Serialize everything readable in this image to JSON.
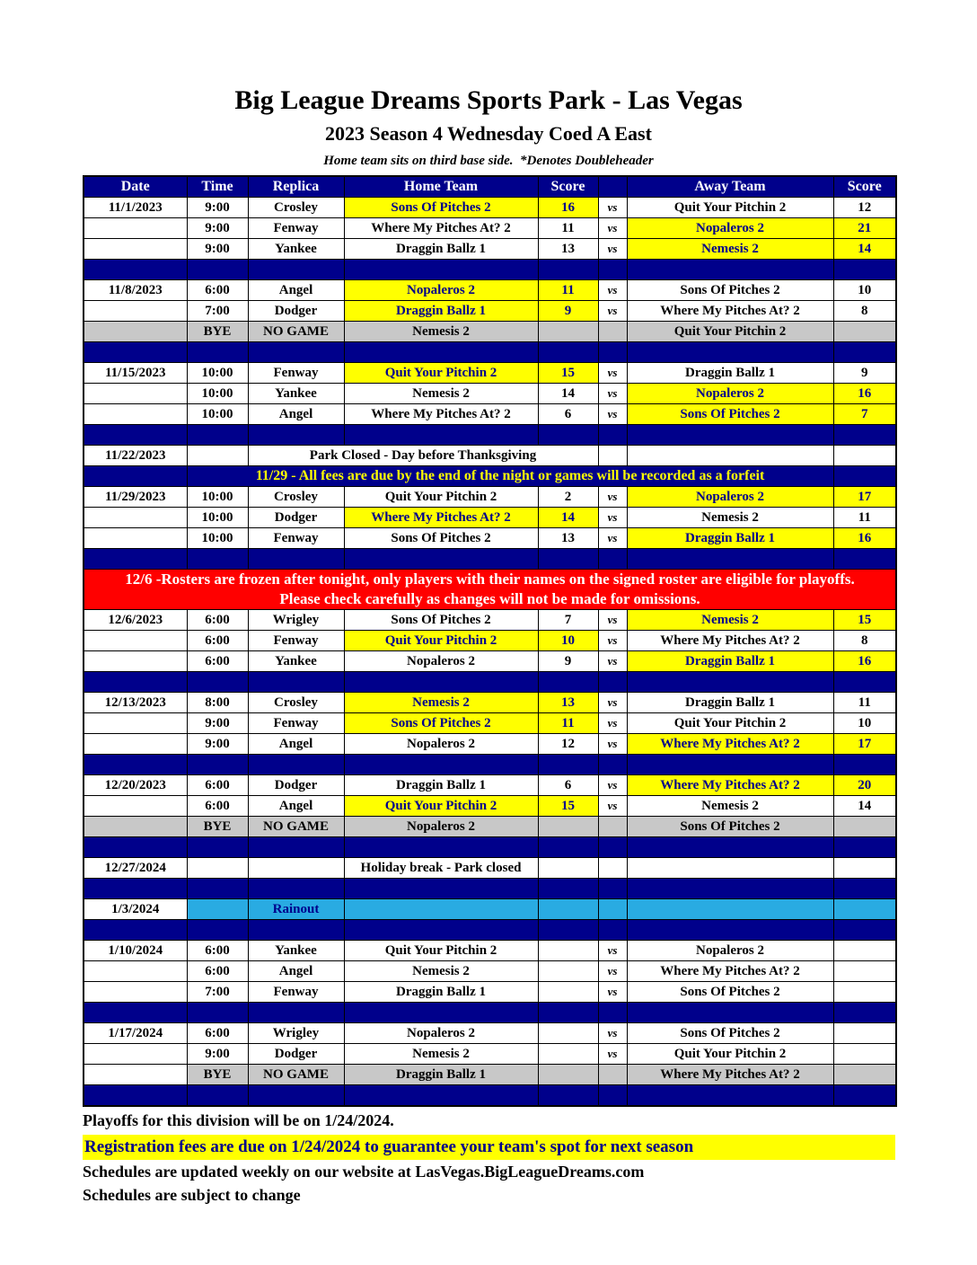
{
  "title": "Big League Dreams Sports Park - Las Vegas",
  "subtitle": "2023 Season 4 Wednesday Coed A East",
  "note": "Home team sits on third base side.  *Denotes Doubleheader",
  "colors": {
    "navy": "#00008B",
    "highlight_yellow": "#FFFF00",
    "alert_red": "#FF0000",
    "rainout_cyan": "#29ABE2",
    "bye_gray": "#C8C8C8",
    "header_text": "#FFFFFF",
    "winner_text": "#00008B"
  },
  "table": {
    "headers": [
      "Date",
      "Time",
      "Replica",
      "Home Team",
      "Score",
      "",
      "Away Team",
      "Score"
    ],
    "vs_label": "vs",
    "rows": [
      {
        "type": "header"
      },
      {
        "type": "game",
        "date": "11/1/2023",
        "time": "9:00",
        "replica": "Crosley",
        "home": "Sons Of Pitches 2",
        "hs": "16",
        "away": "Quit Your Pitchin 2",
        "as": "12",
        "win": "home"
      },
      {
        "type": "game",
        "date": "",
        "time": "9:00",
        "replica": "Fenway",
        "home": "Where My Pitches At? 2",
        "hs": "11",
        "away": "Nopaleros 2",
        "as": "21",
        "win": "away"
      },
      {
        "type": "game",
        "date": "",
        "time": "9:00",
        "replica": "Yankee",
        "home": "Draggin Ballz 1",
        "hs": "13",
        "away": "Nemesis 2",
        "as": "14",
        "win": "away"
      },
      {
        "type": "spacer"
      },
      {
        "type": "game",
        "date": "11/8/2023",
        "time": "6:00",
        "replica": "Angel",
        "home": "Nopaleros 2",
        "hs": "11",
        "away": "Sons Of Pitches 2",
        "as": "10",
        "win": "home"
      },
      {
        "type": "game",
        "date": "",
        "time": "7:00",
        "replica": "Dodger",
        "home": "Draggin Ballz 1",
        "hs": "9",
        "away": "Where My Pitches At? 2",
        "as": "8",
        "win": "home"
      },
      {
        "type": "bye",
        "date": "",
        "date_gray": true,
        "bye": "BYE",
        "nogame": "NO GAME",
        "home": "Nemesis 2",
        "away": "Quit Your Pitchin 2"
      },
      {
        "type": "spacer"
      },
      {
        "type": "game",
        "date": "11/15/2023",
        "time": "10:00",
        "replica": "Fenway",
        "home": "Quit Your Pitchin 2",
        "hs": "15",
        "away": "Draggin Ballz 1",
        "as": "9",
        "win": "home"
      },
      {
        "type": "game",
        "date": "",
        "time": "10:00",
        "replica": "Yankee",
        "home": "Nemesis 2",
        "hs": "14",
        "away": "Nopaleros 2",
        "as": "16",
        "win": "away"
      },
      {
        "type": "game",
        "date": "",
        "time": "10:00",
        "replica": "Angel",
        "home": "Where My Pitches At? 2",
        "hs": "6",
        "away": "Sons Of Pitches 2",
        "as": "7",
        "win": "away"
      },
      {
        "type": "spacer"
      },
      {
        "type": "notice",
        "span": "mid",
        "date": "11/22/2023",
        "text": "Park Closed - Day before Thanksgiving"
      },
      {
        "type": "banner_navy",
        "text": "11/29 - All fees are due by the end of the night or games will be recorded as a forfeit"
      },
      {
        "type": "game",
        "date": "11/29/2023",
        "time": "10:00",
        "replica": "Crosley",
        "home": "Quit Your Pitchin 2",
        "hs": "2",
        "away": "Nopaleros 2",
        "as": "17",
        "win": "away"
      },
      {
        "type": "game",
        "date": "",
        "time": "10:00",
        "replica": "Dodger",
        "home": "Where My Pitches At? 2",
        "hs": "14",
        "away": "Nemesis 2",
        "as": "11",
        "win": "home"
      },
      {
        "type": "game",
        "date": "",
        "time": "10:00",
        "replica": "Fenway",
        "home": "Sons Of Pitches 2",
        "hs": "13",
        "away": "Draggin Ballz 1",
        "as": "16",
        "win": "away"
      },
      {
        "type": "spacer"
      },
      {
        "type": "banner_red",
        "line1": "12/6 -Rosters are frozen after tonight, only players with their names on the signed roster are eligible for playoffs.",
        "line2": "Please check carefully as changes will not be made for omissions."
      },
      {
        "type": "game",
        "date": "12/6/2023",
        "time": "6:00",
        "replica": "Wrigley",
        "home": "Sons Of Pitches 2",
        "hs": "7",
        "away": "Nemesis 2",
        "as": "15",
        "win": "away"
      },
      {
        "type": "game",
        "date": "",
        "time": "6:00",
        "replica": "Fenway",
        "home": "Quit Your Pitchin 2",
        "hs": "10",
        "away": "Where My Pitches At? 2",
        "as": "8",
        "win": "home"
      },
      {
        "type": "game",
        "date": "",
        "time": "6:00",
        "replica": "Yankee",
        "home": "Nopaleros 2",
        "hs": "9",
        "away": "Draggin Ballz 1",
        "as": "16",
        "win": "away"
      },
      {
        "type": "spacer"
      },
      {
        "type": "game",
        "date": "12/13/2023",
        "time": "8:00",
        "replica": "Crosley",
        "home": "Nemesis 2",
        "hs": "13",
        "away": "Draggin Ballz 1",
        "as": "11",
        "win": "home"
      },
      {
        "type": "game",
        "date": "",
        "time": "9:00",
        "replica": "Fenway",
        "home": "Sons Of Pitches 2",
        "hs": "11",
        "away": "Quit Your Pitchin 2",
        "as": "10",
        "win": "home"
      },
      {
        "type": "game",
        "date": "",
        "time": "9:00",
        "replica": "Angel",
        "home": "Nopaleros 2",
        "hs": "12",
        "away": "Where My Pitches At? 2",
        "as": "17",
        "win": "away"
      },
      {
        "type": "spacer"
      },
      {
        "type": "game",
        "date": "12/20/2023",
        "time": "6:00",
        "replica": "Dodger",
        "home": "Draggin Ballz 1",
        "hs": "6",
        "away": "Where My Pitches At? 2",
        "as": "20",
        "win": "away"
      },
      {
        "type": "game",
        "date": "",
        "time": "6:00",
        "replica": "Angel",
        "home": "Quit Your Pitchin 2",
        "hs": "15",
        "away": "Nemesis 2",
        "as": "14",
        "win": "home"
      },
      {
        "type": "bye",
        "date": "",
        "date_gray": true,
        "bye": "BYE",
        "nogame": "NO GAME",
        "home": "Nopaleros 2",
        "away": "Sons Of Pitches 2"
      },
      {
        "type": "spacer"
      },
      {
        "type": "notice",
        "span": "home",
        "date": "12/27/2024",
        "text": "Holiday break - Park closed"
      },
      {
        "type": "spacer"
      },
      {
        "type": "rainout",
        "date": "1/3/2024",
        "label": "Rainout"
      },
      {
        "type": "spacer"
      },
      {
        "type": "game",
        "date": "1/10/2024",
        "time": "6:00",
        "replica": "Yankee",
        "home": "Quit Your Pitchin 2",
        "hs": "",
        "away": "Nopaleros 2",
        "as": "",
        "win": null
      },
      {
        "type": "game",
        "date": "",
        "time": "6:00",
        "replica": "Angel",
        "home": "Nemesis 2",
        "hs": "",
        "away": "Where My Pitches At? 2",
        "as": "",
        "win": null
      },
      {
        "type": "game",
        "date": "",
        "time": "7:00",
        "replica": "Fenway",
        "home": "Draggin Ballz 1",
        "hs": "",
        "away": "Sons Of Pitches 2",
        "as": "",
        "win": null
      },
      {
        "type": "spacer"
      },
      {
        "type": "game",
        "date": "1/17/2024",
        "time": "6:00",
        "replica": "Wrigley",
        "home": "Nopaleros 2",
        "hs": "",
        "away": "Sons Of Pitches 2",
        "as": "",
        "win": null
      },
      {
        "type": "game",
        "date": "",
        "time": "9:00",
        "replica": "Dodger",
        "home": "Nemesis 2",
        "hs": "",
        "away": "Quit Your Pitchin 2",
        "as": "",
        "win": null
      },
      {
        "type": "bye",
        "date": "",
        "date_gray": false,
        "bye": "BYE",
        "nogame": "NO GAME",
        "home": "Draggin Ballz 1",
        "away": "Where My Pitches At? 2"
      },
      {
        "type": "spacer"
      }
    ]
  },
  "footer": {
    "playoffs": "Playoffs for this division will be on 1/24/2024.",
    "registration": "Registration fees are due on 1/24/2024 to guarantee your team's spot for next season",
    "website": "Schedules are updated weekly on our website at LasVegas.BigLeagueDreams.com",
    "subject": "Schedules are subject to change"
  }
}
